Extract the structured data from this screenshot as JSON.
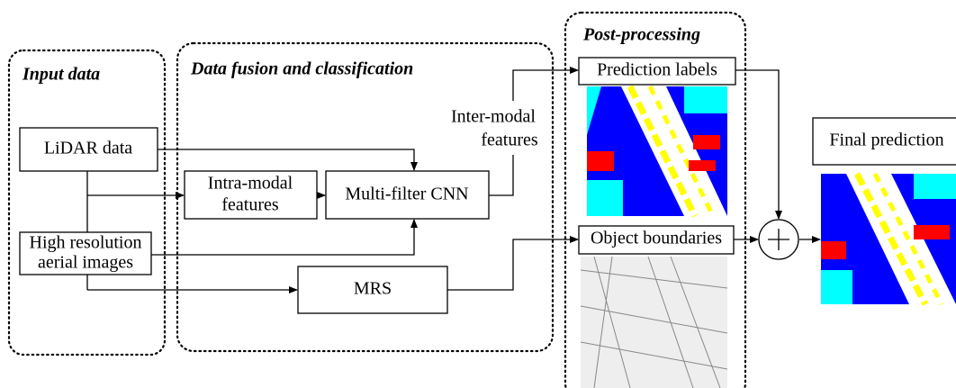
{
  "groups": [
    {
      "label": "Input data"
    },
    {
      "label": "Data fusion and classification"
    },
    {
      "label": "Post-processing"
    }
  ],
  "nodes": [
    {
      "label": "LiDAR data"
    },
    {
      "lines": [
        "High resolution",
        "aerial images"
      ]
    },
    {
      "lines": [
        "Intra-modal",
        "features"
      ]
    },
    {
      "label": "Multi-filter CNN"
    },
    {
      "label": "MRS"
    },
    {
      "label": "Prediction labels"
    },
    {
      "label": "Object boundaries"
    },
    {
      "label": "Final prediction"
    }
  ],
  "edge_labels": [
    {
      "lines": [
        "Inter-modal",
        "features"
      ]
    }
  ]
}
